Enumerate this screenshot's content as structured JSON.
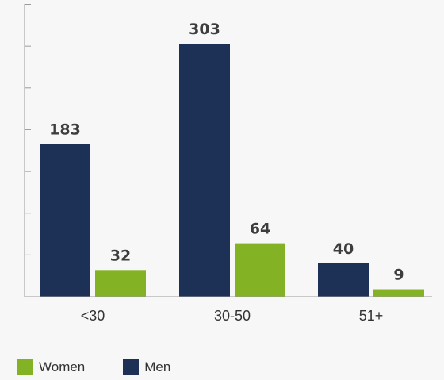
{
  "chart_data": {
    "type": "bar",
    "categories": [
      "<30",
      "30-50",
      "51+"
    ],
    "series": [
      {
        "name": "Men",
        "values": [
          183,
          303,
          40
        ],
        "color": "#1d3156"
      },
      {
        "name": "Women",
        "values": [
          32,
          64,
          9
        ],
        "color": "#84b225"
      }
    ],
    "ylim": [
      0,
      350
    ],
    "axis_color": "#9a9a9a",
    "legend": {
      "placement": "bottom-left",
      "items": [
        {
          "label": "Women",
          "color": "#84b225"
        },
        {
          "label": "Men",
          "color": "#1d3156"
        }
      ]
    }
  }
}
